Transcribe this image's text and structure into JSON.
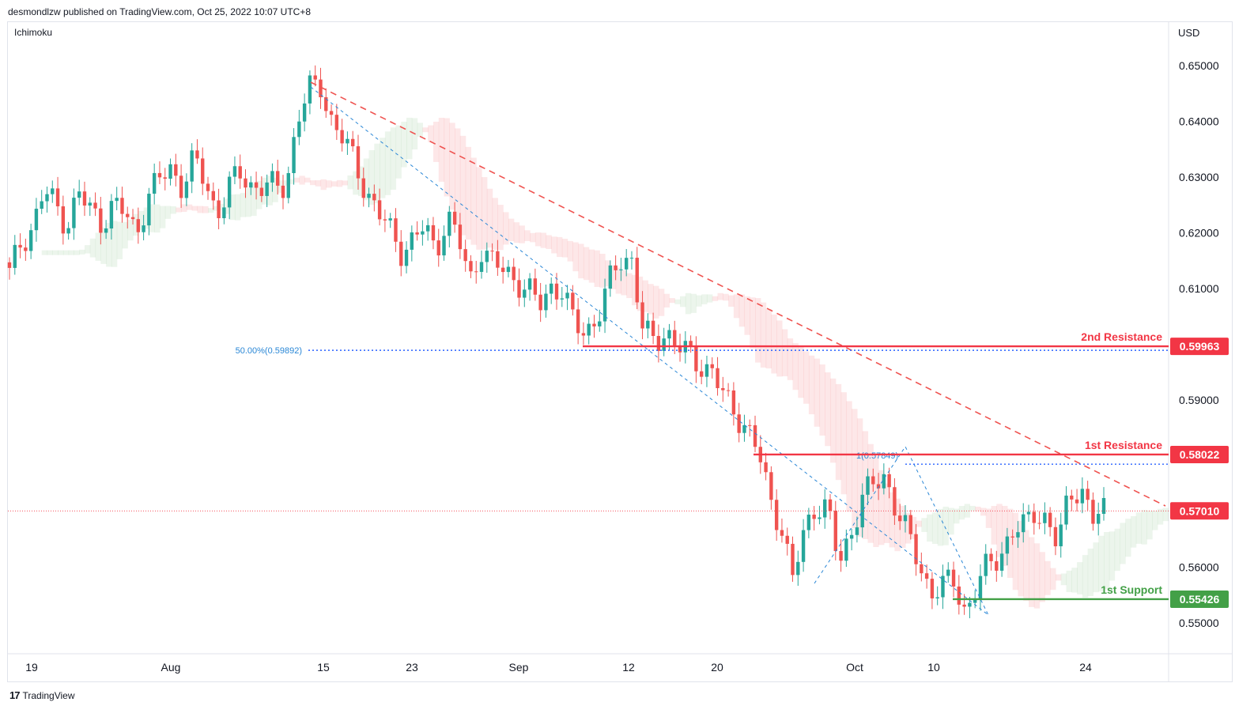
{
  "header": {
    "publisher": "desmondlzw published on TradingView.com, Oct 25, 2022 10:07 UTC+8",
    "indicator": "Ichimoku",
    "currency": "USD"
  },
  "footer": {
    "brand": "TradingView",
    "logo_icon": "tradingview-logo-icon"
  },
  "colors": {
    "bull": "#26a69a",
    "bear": "#ef5350",
    "resistance": "#f23645",
    "support": "#43a047",
    "fib": "#2962ff",
    "trend": "#ef5350"
  },
  "chart_data": {
    "type": "candlestick",
    "ylim": [
      0.545,
      0.6545
    ],
    "y_ticks": [
      "0.65000",
      "0.64000",
      "0.63000",
      "0.62000",
      "0.61000",
      "0.60000",
      "0.59000",
      "0.58000",
      "0.57000",
      "0.56000",
      "0.55000"
    ],
    "x_ticks": [
      "19",
      "Aug",
      "15",
      "23",
      "Sep",
      "12",
      "20",
      "Oct",
      "10",
      "24"
    ],
    "levels": [
      {
        "name": "2nd Resistance",
        "value": 0.59963,
        "label": "0.59963",
        "kind": "resistance"
      },
      {
        "name": "1st Resistance",
        "value": 0.58022,
        "label": "0.58022",
        "kind": "resistance"
      },
      {
        "name": "1st Support",
        "value": 0.55426,
        "label": "0.55426",
        "kind": "support"
      }
    ],
    "last_price": {
      "value": 0.5701,
      "label": "0.57010"
    },
    "fib_labels": {
      "level_50": "50.00%(0.59892)",
      "level_100": "1(0.57849)"
    },
    "fib_values": {
      "level_50": 0.59892,
      "level_100": 0.57849
    },
    "price_path": [
      0.6125,
      0.6185,
      0.621,
      0.6275,
      0.625,
      0.6215,
      0.627,
      0.624,
      0.622,
      0.625,
      0.6235,
      0.62,
      0.6265,
      0.6295,
      0.6315,
      0.6285,
      0.633,
      0.629,
      0.6235,
      0.628,
      0.6305,
      0.6285,
      0.6285,
      0.628,
      0.6285,
      0.6405,
      0.6455,
      0.6465,
      0.64,
      0.6365,
      0.6325,
      0.6275,
      0.6235,
      0.6205,
      0.617,
      0.6185,
      0.621,
      0.617,
      0.623,
      0.6185,
      0.6115,
      0.6175,
      0.614,
      0.6135,
      0.6115,
      0.6095,
      0.607,
      0.6105,
      0.6095,
      0.6035,
      0.6025,
      0.6045,
      0.6105,
      0.6155,
      0.6155,
      0.602,
      0.6005,
      0.6025,
      0.5995,
      0.598,
      0.5965,
      0.595,
      0.5905,
      0.588,
      0.585,
      0.5805,
      0.5725,
      0.5675,
      0.5575,
      0.5665,
      0.5715,
      0.5705,
      0.5605,
      0.566,
      0.5725,
      0.5745,
      0.5765,
      0.5705,
      0.5655,
      0.5605,
      0.5555,
      0.5565,
      0.5575,
      0.552,
      0.5565,
      0.5605,
      0.5625,
      0.566,
      0.567,
      0.5705,
      0.5685,
      0.5635,
      0.5735,
      0.5745,
      0.568,
      0.5705
    ]
  }
}
